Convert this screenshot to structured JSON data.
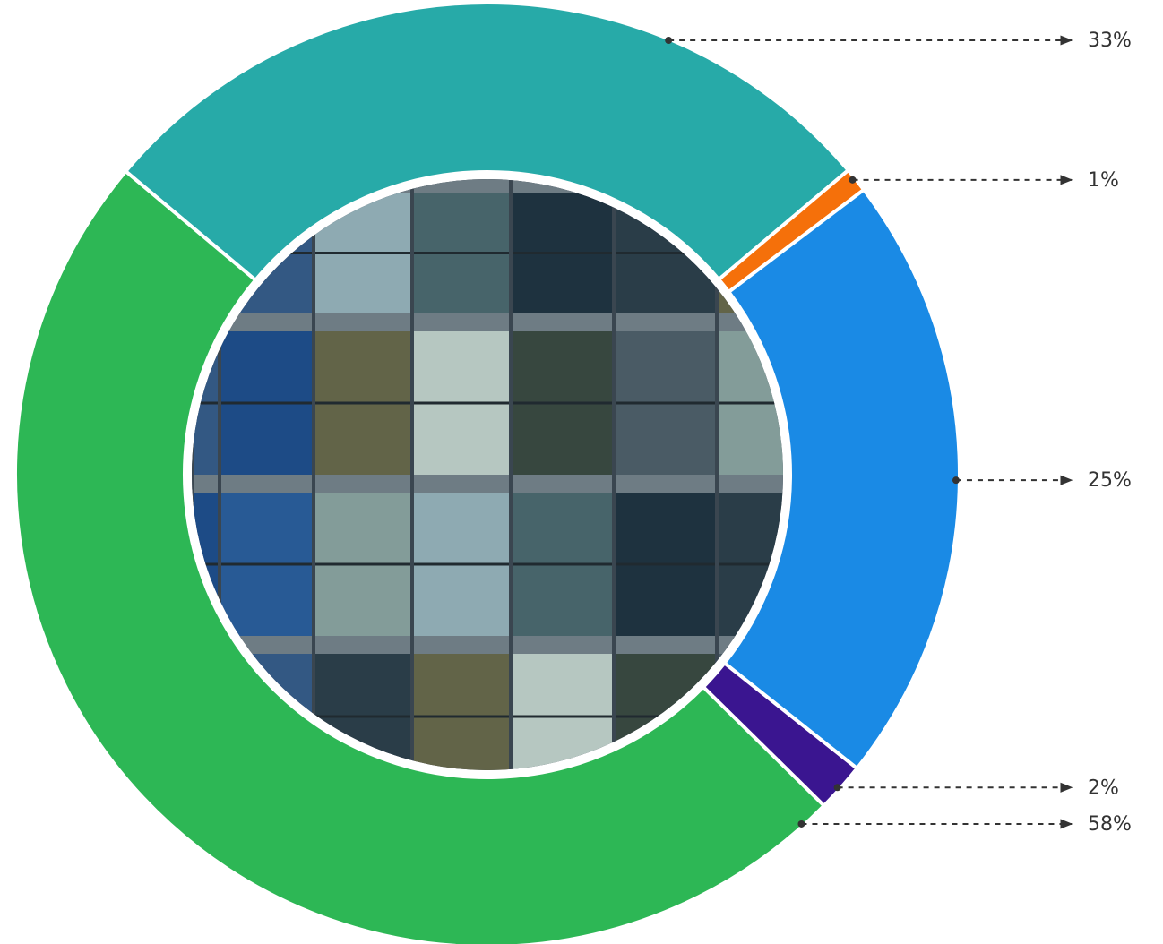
{
  "chart_data": {
    "type": "donut",
    "values": [
      33,
      1,
      25,
      2,
      58
    ],
    "value_labels": [
      "33%",
      "1%",
      "25%",
      "2%",
      "58%"
    ],
    "colors": [
      "#27aaa8",
      "#f5700a",
      "#1a8ae5",
      "#3a1590",
      "#2db755"
    ]
  }
}
